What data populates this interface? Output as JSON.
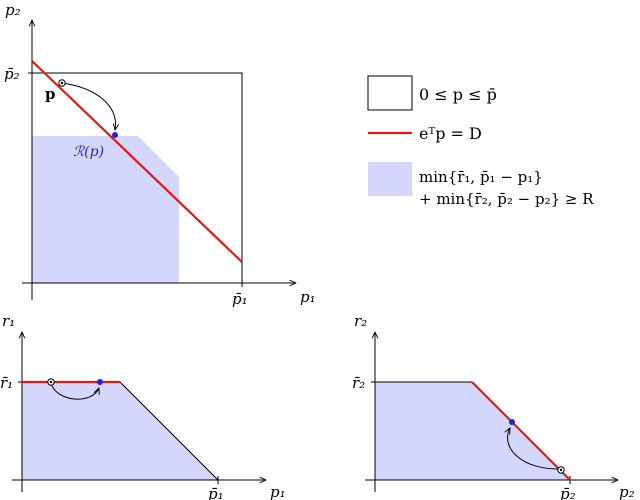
{
  "top_plot": {
    "y_axis_label": "p₂",
    "x_axis_label": "p₁",
    "y_tick_label": "p̄₂",
    "x_tick_label": "p̄₁",
    "point_label": "p",
    "projection_label": "ℛ(p)"
  },
  "legend": {
    "box_label": "0 ≤ p ≤ p̄",
    "line_label": "eᵀp = D",
    "region_label_line1": "min{r̄₁, p̄₁ − p₁}",
    "region_label_line2": "+ min{r̄₂, p̄₂ − p₂} ≥ R"
  },
  "bottom_left_plot": {
    "y_axis_label": "r₁",
    "x_axis_label": "p₁",
    "y_tick_label": "r̄₁",
    "x_tick_label": "p̄₁"
  },
  "bottom_right_plot": {
    "y_axis_label": "r₂",
    "x_axis_label": "p₂",
    "y_tick_label": "r̄₂",
    "x_tick_label": "p̄₂"
  },
  "colors": {
    "region_fill": "#d4d6fb",
    "line_red": "#e01818",
    "point_blue": "#2323d8",
    "axis": "#000000"
  }
}
